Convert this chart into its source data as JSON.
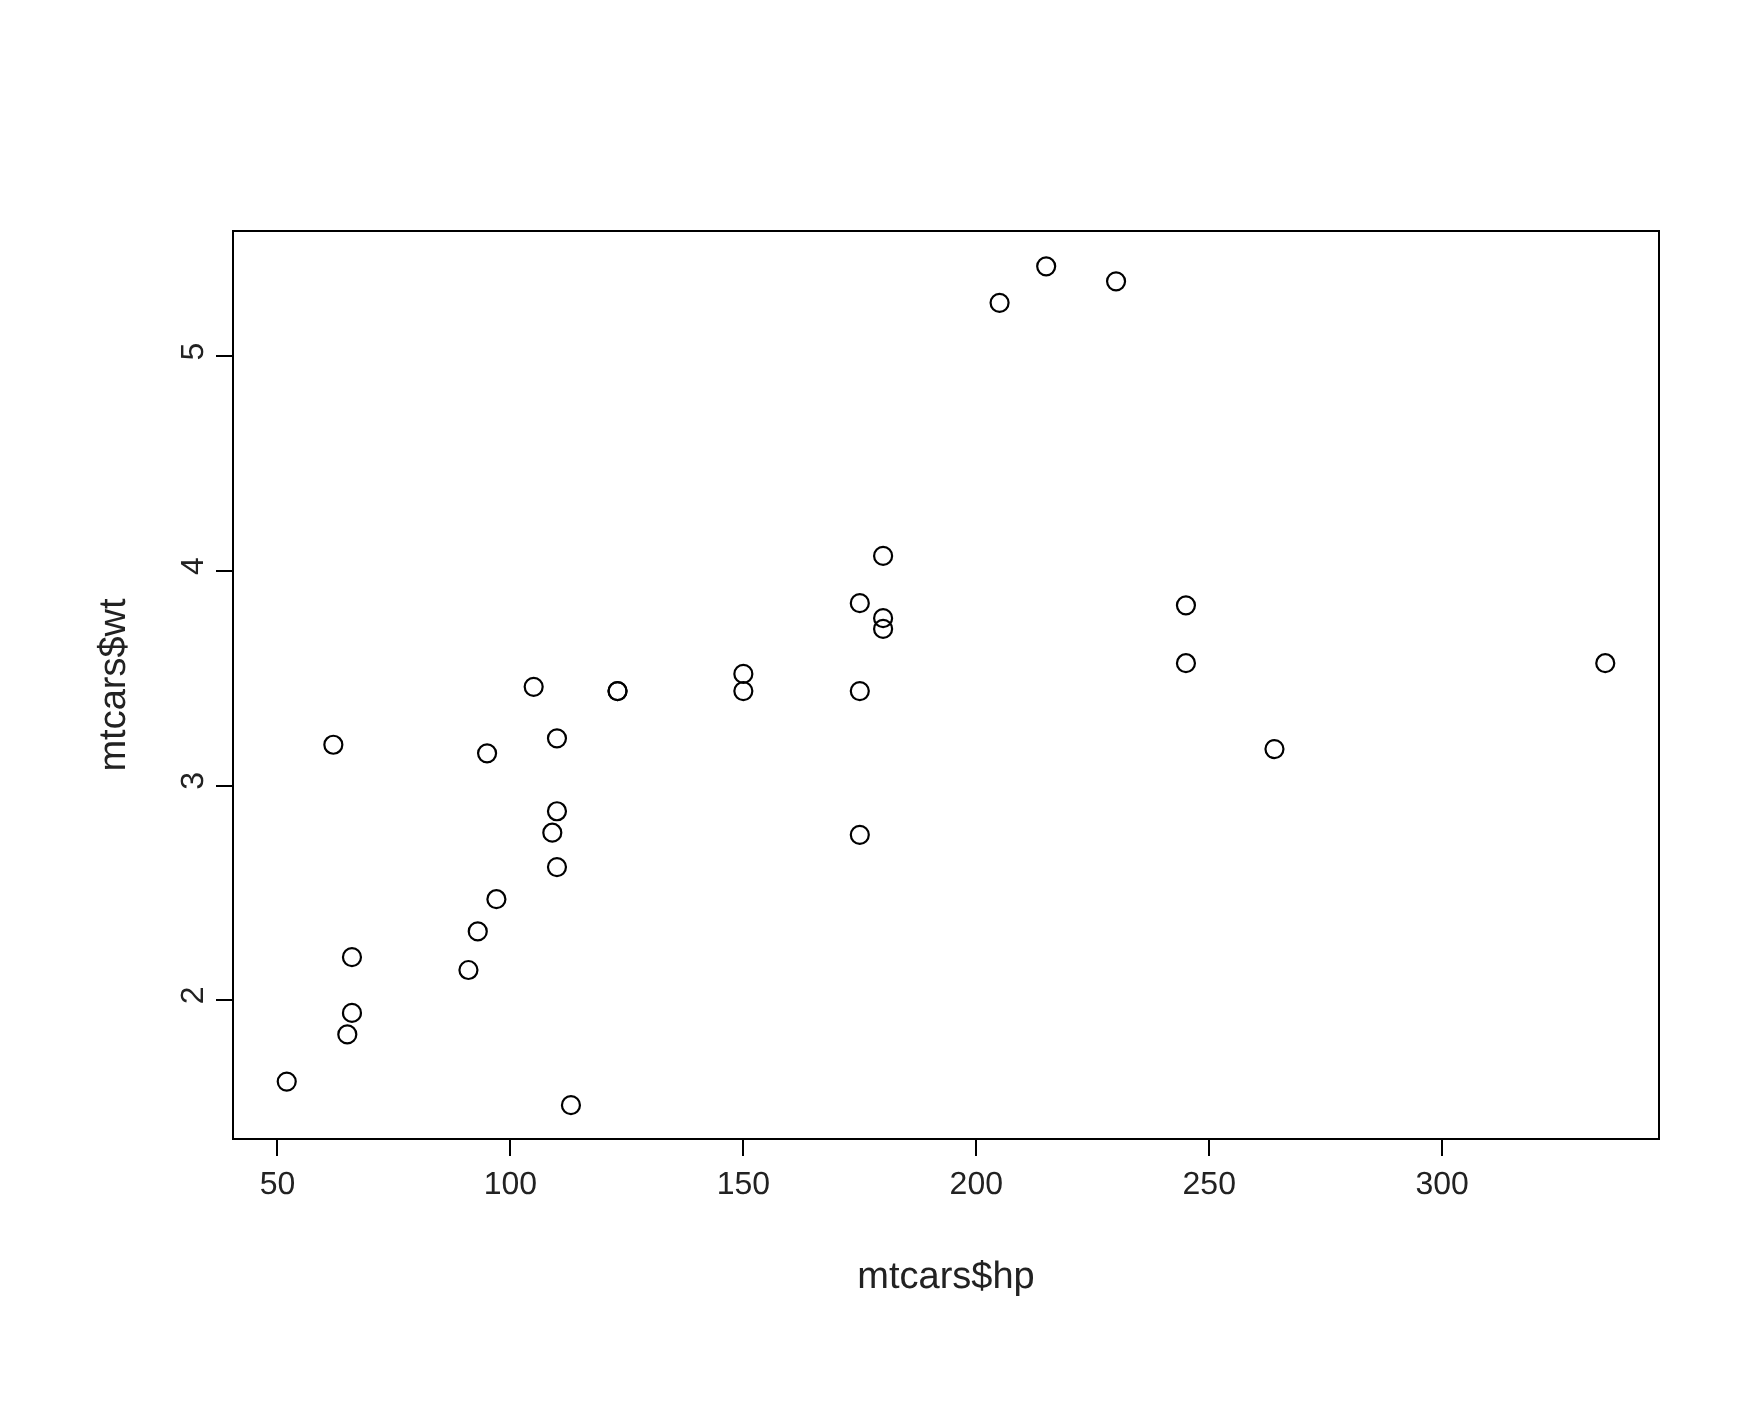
{
  "chart_data": {
    "type": "scatter",
    "xlabel": "mtcars$hp",
    "ylabel": "mtcars$wt",
    "x": [
      110,
      110,
      93,
      110,
      175,
      105,
      245,
      62,
      95,
      123,
      123,
      180,
      180,
      180,
      205,
      215,
      230,
      66,
      52,
      65,
      97,
      150,
      150,
      245,
      175,
      66,
      91,
      113,
      264,
      175,
      335,
      109
    ],
    "series": [
      {
        "color": "#000000",
        "values": [
          2.62,
          2.88,
          2.32,
          3.22,
          3.44,
          3.46,
          3.57,
          3.19,
          3.15,
          3.44,
          3.44,
          4.07,
          3.73,
          3.78,
          5.25,
          5.42,
          5.35,
          2.2,
          1.62,
          1.84,
          2.47,
          3.52,
          3.44,
          3.84,
          3.85,
          1.94,
          2.14,
          1.51,
          3.17,
          2.77,
          3.57,
          2.78
        ]
      }
    ],
    "marker": "circle",
    "xlim": [
      40.68,
      346.32
    ],
    "ylim": [
      1.357,
      5.58
    ],
    "xticks": [
      50,
      100,
      150,
      200,
      250,
      300
    ],
    "yticks": [
      2,
      3,
      4,
      5
    ]
  }
}
